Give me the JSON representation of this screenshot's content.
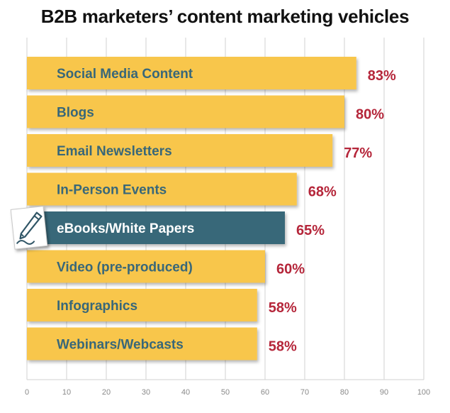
{
  "chart_data": {
    "type": "bar",
    "orientation": "horizontal",
    "title": "B2B marketers’ content marketing vehicles",
    "xlabel": "",
    "ylabel": "",
    "xlim": [
      0,
      100
    ],
    "ticks": [
      "0",
      "10",
      "20",
      "30",
      "40",
      "50",
      "60",
      "70",
      "80",
      "90",
      "100"
    ],
    "categories": [
      "Social Media Content",
      "Blogs",
      "Email Newsletters",
      "In-Person Events",
      "eBooks/White Papers",
      "Video (pre-produced)",
      "Infographics",
      "Webinars/Webcasts"
    ],
    "values": [
      83,
      80,
      77,
      68,
      65,
      60,
      58,
      58
    ],
    "value_labels": [
      "83%",
      "80%",
      "77%",
      "68%",
      "65%",
      "60%",
      "58%",
      "58%"
    ],
    "highlight_category": "eBooks/White Papers",
    "highlight_icon": "pencil-icon",
    "grid": true,
    "colors": {
      "bar": "#F8C64C",
      "highlight_bar": "#386779",
      "label_text": "#386779",
      "highlight_label_text": "#FFFFFF",
      "value_text": "#B5263A",
      "grid": "#D2D2D2"
    }
  }
}
